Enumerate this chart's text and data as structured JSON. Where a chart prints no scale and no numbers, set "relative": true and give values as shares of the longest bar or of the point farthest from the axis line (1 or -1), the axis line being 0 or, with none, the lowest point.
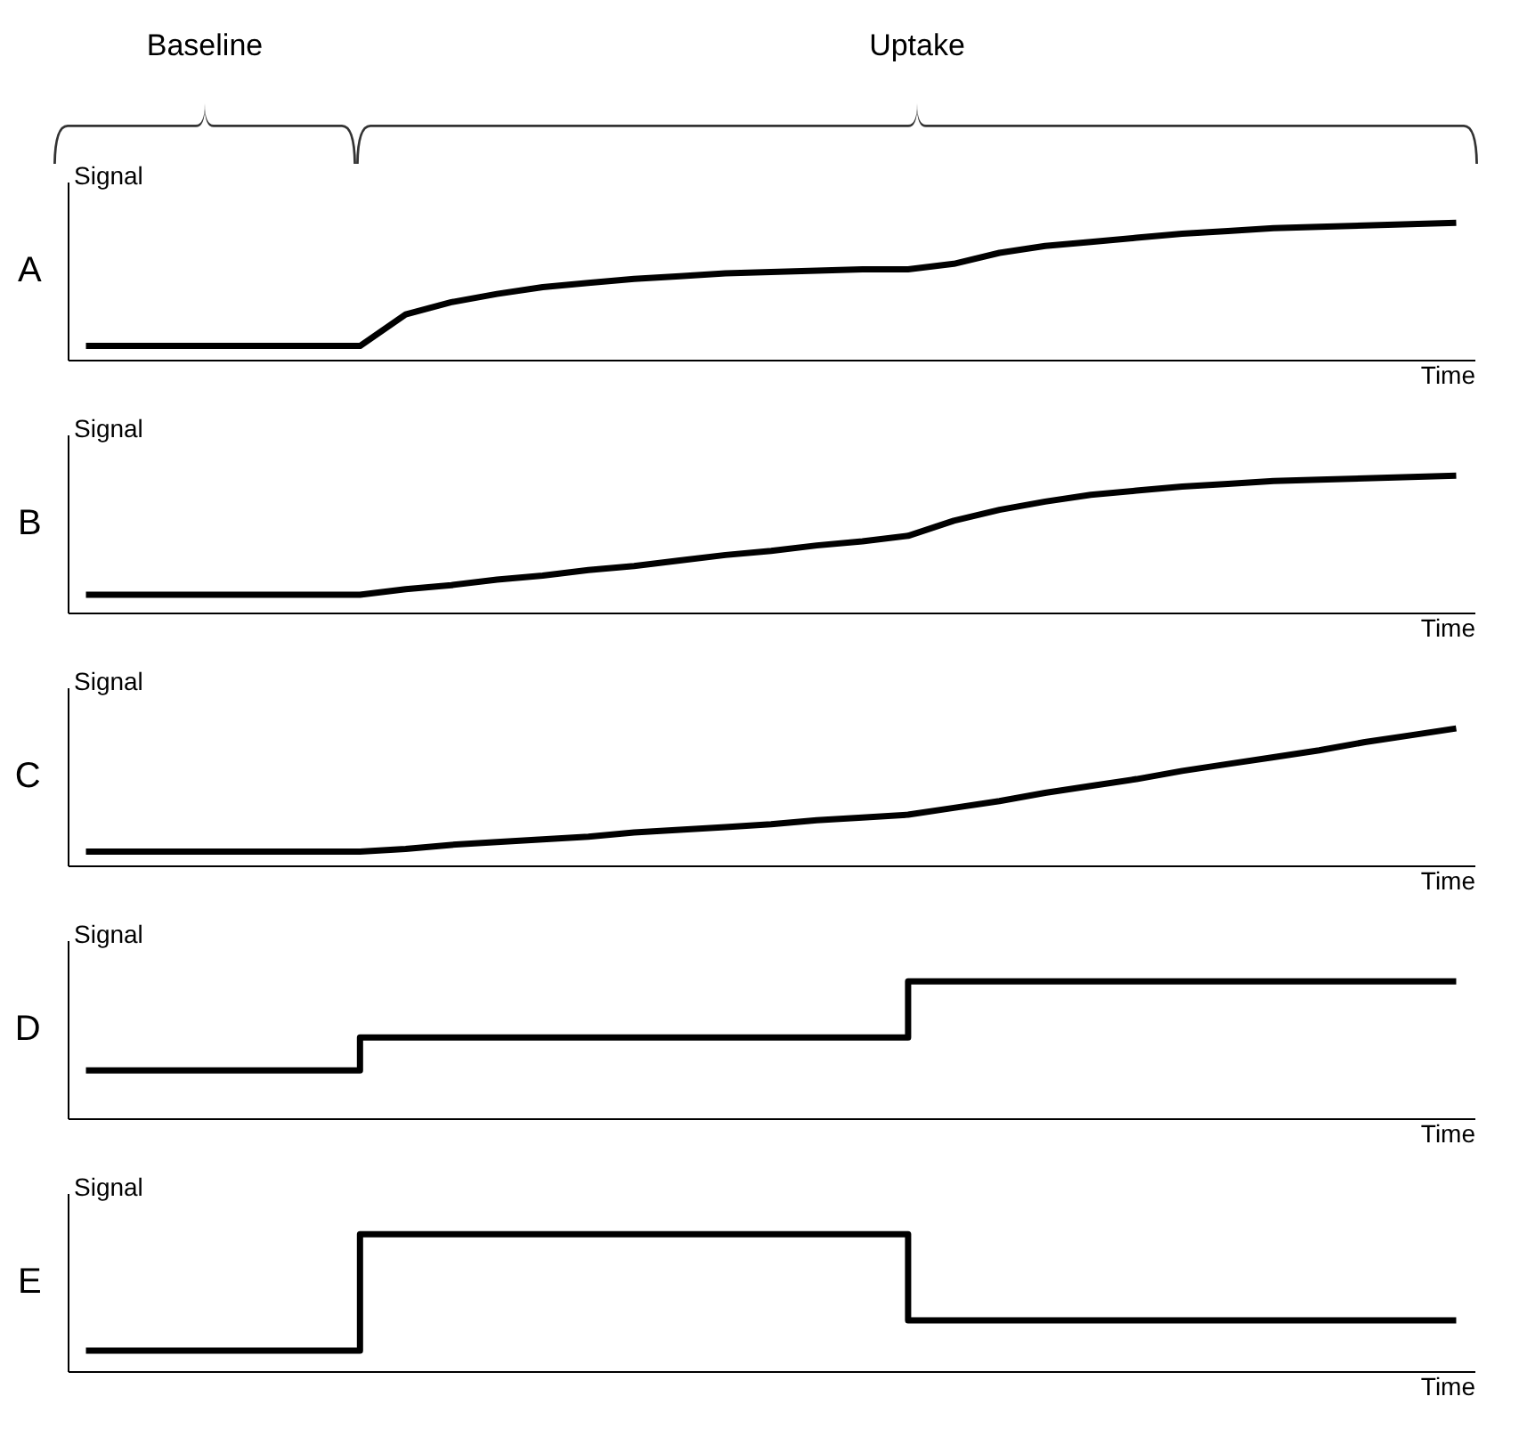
{
  "chart_data": [
    {
      "type": "line",
      "title": "A",
      "ylabel": "Signal",
      "xlabel": "Time",
      "relative": true,
      "annotations": [
        "Baseline",
        "Uptake"
      ],
      "categories": [
        null,
        null,
        null,
        null,
        null,
        null,
        null,
        null,
        null,
        null,
        null,
        null,
        null,
        null,
        null,
        null,
        null,
        null,
        null,
        null,
        null,
        null,
        null,
        null,
        null,
        null,
        null,
        null,
        null,
        null,
        null
      ],
      "series": [
        {
          "color": "#000000",
          "values": [
            0.1,
            0.1,
            0.1,
            0.1,
            0.1,
            0.1,
            0.1,
            0.33,
            0.42,
            0.48,
            0.53,
            0.56,
            0.59,
            0.61,
            0.63,
            0.64,
            0.65,
            0.66,
            0.66,
            0.7,
            0.78,
            0.83,
            0.86,
            0.89,
            0.92,
            0.94,
            0.96,
            0.97,
            0.98,
            0.99,
            1.0
          ]
        }
      ]
    },
    {
      "type": "line",
      "title": "B",
      "ylabel": "Signal",
      "xlabel": "Time",
      "relative": true,
      "categories": [
        null,
        null,
        null,
        null,
        null,
        null,
        null,
        null,
        null,
        null,
        null,
        null,
        null,
        null,
        null,
        null,
        null,
        null,
        null,
        null,
        null,
        null,
        null,
        null,
        null,
        null,
        null,
        null,
        null,
        null,
        null
      ],
      "series": [
        {
          "color": "#000000",
          "values": [
            0.13,
            0.13,
            0.13,
            0.13,
            0.13,
            0.13,
            0.13,
            0.17,
            0.2,
            0.24,
            0.27,
            0.31,
            0.34,
            0.38,
            0.42,
            0.45,
            0.49,
            0.52,
            0.56,
            0.67,
            0.75,
            0.81,
            0.86,
            0.89,
            0.92,
            0.94,
            0.96,
            0.97,
            0.98,
            0.99,
            1.0
          ]
        }
      ]
    },
    {
      "type": "line",
      "title": "C",
      "ylabel": "Signal",
      "xlabel": "Time",
      "relative": true,
      "categories": [
        null,
        null,
        null,
        null,
        null,
        null,
        null,
        null,
        null,
        null,
        null,
        null,
        null,
        null,
        null,
        null,
        null,
        null,
        null,
        null,
        null,
        null,
        null,
        null,
        null,
        null,
        null,
        null,
        null,
        null,
        null
      ],
      "series": [
        {
          "color": "#000000",
          "values": [
            0.1,
            0.1,
            0.1,
            0.1,
            0.1,
            0.1,
            0.1,
            0.12,
            0.15,
            0.17,
            0.19,
            0.21,
            0.24,
            0.26,
            0.28,
            0.3,
            0.33,
            0.35,
            0.37,
            0.42,
            0.47,
            0.53,
            0.58,
            0.63,
            0.69,
            0.74,
            0.79,
            0.84,
            0.9,
            0.95,
            1.0
          ]
        }
      ]
    },
    {
      "type": "step",
      "title": "D",
      "ylabel": "Signal",
      "xlabel": "Time",
      "relative": true,
      "categories": [
        null,
        null,
        null,
        null,
        null,
        null,
        null,
        null,
        null,
        null,
        null,
        null,
        null,
        null,
        null,
        null,
        null,
        null,
        null,
        null,
        null,
        null,
        null,
        null,
        null,
        null,
        null,
        null,
        null,
        null,
        null
      ],
      "series": [
        {
          "color": "#000000",
          "values": [
            0.35,
            0.35,
            0.35,
            0.35,
            0.35,
            0.35,
            0.59,
            0.59,
            0.59,
            0.59,
            0.59,
            0.59,
            0.59,
            0.59,
            0.59,
            0.59,
            0.59,
            0.59,
            1.0,
            1.0,
            1.0,
            1.0,
            1.0,
            1.0,
            1.0,
            1.0,
            1.0,
            1.0,
            1.0,
            1.0,
            1.0
          ]
        }
      ]
    },
    {
      "type": "step",
      "title": "E",
      "ylabel": "Signal",
      "xlabel": "Time",
      "relative": true,
      "categories": [
        null,
        null,
        null,
        null,
        null,
        null,
        null,
        null,
        null,
        null,
        null,
        null,
        null,
        null,
        null,
        null,
        null,
        null,
        null,
        null,
        null,
        null,
        null,
        null,
        null,
        null,
        null,
        null,
        null,
        null,
        null
      ],
      "series": [
        {
          "color": "#000000",
          "values": [
            0.15,
            0.15,
            0.15,
            0.15,
            0.15,
            0.15,
            1.0,
            1.0,
            1.0,
            1.0,
            1.0,
            1.0,
            1.0,
            1.0,
            1.0,
            1.0,
            1.0,
            1.0,
            0.37,
            0.37,
            0.37,
            0.37,
            0.37,
            0.37,
            0.37,
            0.37,
            0.37,
            0.37,
            0.37,
            0.37,
            0.37
          ]
        }
      ]
    }
  ]
}
